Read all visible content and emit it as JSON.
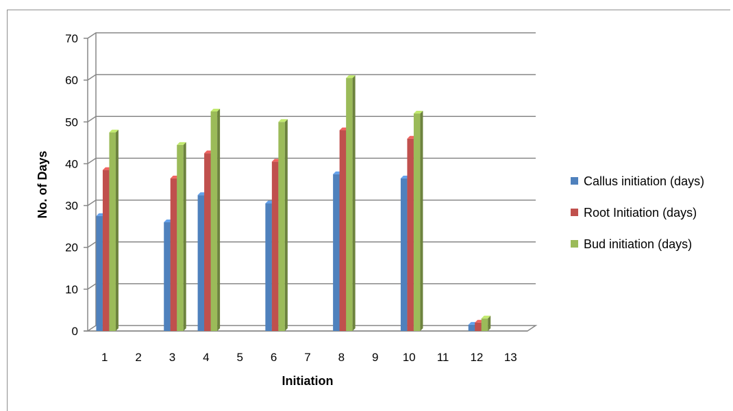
{
  "chart_data": {
    "type": "bar",
    "title": "",
    "xlabel": "Initiation",
    "ylabel": "No. of Days",
    "ylim": [
      0,
      70
    ],
    "yticks": [
      0,
      10,
      20,
      30,
      40,
      50,
      60,
      70
    ],
    "grid": true,
    "legend_position": "right",
    "categories": [
      "1",
      "2",
      "3",
      "4",
      "5",
      "6",
      "7",
      "8",
      "9",
      "10",
      "11",
      "12",
      "13"
    ],
    "series": [
      {
        "name": "Callus initiation (days)",
        "color": "#4f81bd",
        "values": [
          27.5,
          0,
          26,
          32.5,
          0,
          30.5,
          0,
          37.5,
          0,
          36.5,
          0,
          1.5,
          0
        ]
      },
      {
        "name": "Root Initiation (days)",
        "color": "#c0504d",
        "values": [
          38.5,
          0,
          36.5,
          42.5,
          0,
          40.5,
          0,
          48,
          0,
          46,
          0,
          2,
          0
        ]
      },
      {
        "name": "Bud initiation (days)",
        "color": "#9bbb59",
        "values": [
          47.5,
          0,
          44.5,
          52.5,
          0,
          50,
          0,
          60.5,
          0,
          52,
          0,
          3,
          0
        ]
      }
    ]
  }
}
